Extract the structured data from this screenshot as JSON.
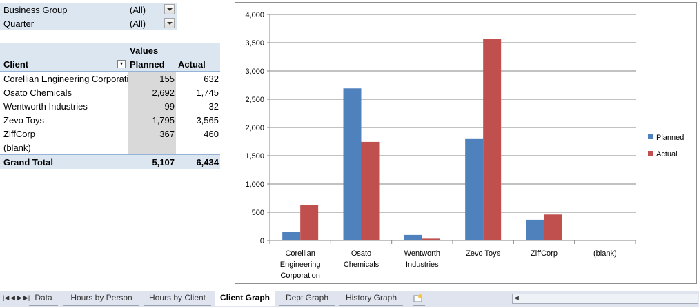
{
  "filters": [
    {
      "label": "Business Group",
      "value": "(All)"
    },
    {
      "label": "Quarter",
      "value": "(All)"
    }
  ],
  "pivot": {
    "values_label": "Values",
    "headers": {
      "client": "Client",
      "planned": "Planned",
      "actual": "Actual"
    },
    "rows": [
      {
        "client": "Corellian Engineering Corporation",
        "planned": "155",
        "actual": "632"
      },
      {
        "client": "Osato Chemicals",
        "planned": "2,692",
        "actual": "1,745"
      },
      {
        "client": "Wentworth Industries",
        "planned": "99",
        "actual": "32"
      },
      {
        "client": "Zevo Toys",
        "planned": "1,795",
        "actual": "3,565"
      },
      {
        "client": "ZiffCorp",
        "planned": "367",
        "actual": "460"
      },
      {
        "client": "(blank)",
        "planned": "",
        "actual": ""
      }
    ],
    "grand_total": {
      "label": "Grand Total",
      "planned": "5,107",
      "actual": "6,434"
    }
  },
  "chart_data": {
    "type": "bar",
    "categories": [
      "Corellian Engineering Corporation",
      "Osato Chemicals",
      "Wentworth Industries",
      "Zevo Toys",
      "ZiffCorp",
      "(blank)"
    ],
    "category_lines": [
      [
        "Corellian",
        "Engineering",
        "Corporation"
      ],
      [
        "Osato",
        "Chemicals"
      ],
      [
        "Wentworth",
        "Industries"
      ],
      [
        "Zevo Toys"
      ],
      [
        "ZiffCorp"
      ],
      [
        "(blank)"
      ]
    ],
    "series": [
      {
        "name": "Planned",
        "color": "#4f81bd",
        "values": [
          155,
          2692,
          99,
          1795,
          367,
          0
        ]
      },
      {
        "name": "Actual",
        "color": "#c0504d",
        "values": [
          632,
          1745,
          32,
          3565,
          460,
          0
        ]
      }
    ],
    "ylim": [
      0,
      4000
    ],
    "yticks": [
      "0",
      "500",
      "1,000",
      "1,500",
      "2,000",
      "2,500",
      "3,000",
      "3,500",
      "4,000"
    ],
    "grid": true,
    "legend": "right"
  },
  "tabs": [
    {
      "label": "Data",
      "active": false
    },
    {
      "label": "Hours by Person",
      "active": false
    },
    {
      "label": "Hours by Client",
      "active": false
    },
    {
      "label": "Client Graph",
      "active": true
    },
    {
      "label": "Dept Graph",
      "active": false
    },
    {
      "label": "History Graph",
      "active": false
    }
  ],
  "nav_icons": [
    "first-sheet-icon",
    "prev-sheet-icon",
    "next-sheet-icon",
    "last-sheet-icon"
  ]
}
